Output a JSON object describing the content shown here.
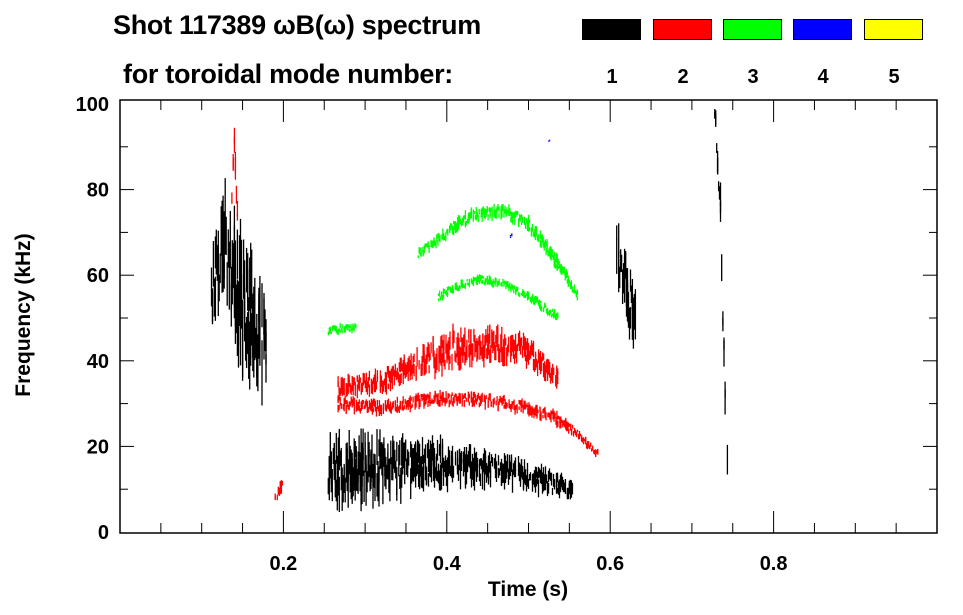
{
  "chart_data": {
    "type": "heatmap",
    "title": "Shot 117389 ωB(ω) spectrum",
    "subtitle": "for toroidal mode number:",
    "xlabel": "Time (s)",
    "ylabel": "Frequency (kHz)",
    "xlim": [
      0.0,
      1.0
    ],
    "ylim": [
      0,
      100
    ],
    "xticks": [
      0.2,
      0.4,
      0.6,
      0.8
    ],
    "xtick_labels": [
      "0.2",
      "0.4",
      "0.6",
      "0.8"
    ],
    "yticks": [
      0,
      20,
      40,
      60,
      80,
      100
    ],
    "ytick_labels": [
      "0",
      "20",
      "40",
      "60",
      "80",
      "100"
    ],
    "legend": [
      {
        "label": "1",
        "color": "#000000"
      },
      {
        "label": "2",
        "color": "#ff0000"
      },
      {
        "label": "3",
        "color": "#00ff00"
      },
      {
        "label": "4",
        "color": "#0000ff"
      },
      {
        "label": "5",
        "color": "#ffff00"
      }
    ],
    "legend_placement": "top-right",
    "traces": [
      {
        "mode": 1,
        "points": [
          [
            0.255,
            14,
            14
          ],
          [
            0.3,
            15,
            14
          ],
          [
            0.34,
            15,
            12
          ],
          [
            0.38,
            16,
            10
          ],
          [
            0.44,
            15,
            7
          ],
          [
            0.5,
            13,
            6
          ],
          [
            0.555,
            10,
            4
          ]
        ]
      },
      {
        "mode": 1,
        "points": [
          [
            0.112,
            55,
            14
          ],
          [
            0.125,
            68,
            22
          ],
          [
            0.14,
            60,
            30
          ],
          [
            0.16,
            50,
            25
          ],
          [
            0.18,
            42,
            20
          ]
        ]
      },
      {
        "mode": 1,
        "points": [
          [
            0.608,
            66,
            12
          ],
          [
            0.62,
            57,
            16
          ],
          [
            0.632,
            48,
            10
          ]
        ]
      },
      {
        "mode": 1,
        "points": [
          [
            0.728,
            98,
            6
          ],
          [
            0.735,
            75,
            10
          ],
          [
            0.738,
            50,
            8
          ],
          [
            0.742,
            25,
            10
          ],
          [
            0.745,
            8,
            6
          ]
        ]
      },
      {
        "mode": 2,
        "points": [
          [
            0.267,
            30,
            3
          ],
          [
            0.32,
            29,
            3
          ],
          [
            0.377,
            31,
            3
          ],
          [
            0.43,
            31,
            3
          ],
          [
            0.475,
            30,
            3
          ],
          [
            0.53,
            27,
            3
          ],
          [
            0.56,
            23,
            2
          ],
          [
            0.586,
            18,
            2
          ]
        ]
      },
      {
        "mode": 2,
        "points": [
          [
            0.267,
            34,
            4
          ],
          [
            0.32,
            35,
            5
          ],
          [
            0.36,
            39,
            6
          ],
          [
            0.41,
            43,
            8
          ],
          [
            0.46,
            44,
            7
          ],
          [
            0.5,
            42,
            6
          ],
          [
            0.537,
            36,
            4
          ]
        ]
      },
      {
        "mode": 2,
        "points": [
          [
            0.137,
            78,
            4
          ],
          [
            0.14,
            90,
            8
          ],
          [
            0.145,
            70,
            4
          ]
        ]
      },
      {
        "mode": 2,
        "points": [
          [
            0.19,
            8,
            2
          ],
          [
            0.2,
            12,
            4
          ]
        ]
      },
      {
        "mode": 3,
        "points": [
          [
            0.365,
            65,
            2
          ],
          [
            0.4,
            70,
            3
          ],
          [
            0.43,
            74,
            3
          ],
          [
            0.47,
            75,
            3
          ],
          [
            0.5,
            72,
            3
          ],
          [
            0.524,
            66,
            3
          ],
          [
            0.545,
            60,
            3
          ],
          [
            0.561,
            55,
            2
          ]
        ]
      },
      {
        "mode": 3,
        "points": [
          [
            0.39,
            55,
            2
          ],
          [
            0.42,
            58,
            2
          ],
          [
            0.44,
            59,
            2
          ],
          [
            0.47,
            58,
            2
          ],
          [
            0.5,
            55,
            2
          ],
          [
            0.537,
            50,
            2
          ]
        ]
      },
      {
        "mode": 3,
        "points": [
          [
            0.255,
            47,
            2
          ],
          [
            0.29,
            48,
            2
          ]
        ]
      },
      {
        "mode": 4,
        "points": [
          [
            0.478,
            69,
            1
          ],
          [
            0.481,
            70,
            1
          ]
        ]
      },
      {
        "mode": 4,
        "points": [
          [
            0.525,
            91,
            1
          ],
          [
            0.527,
            92,
            1
          ]
        ]
      }
    ]
  }
}
